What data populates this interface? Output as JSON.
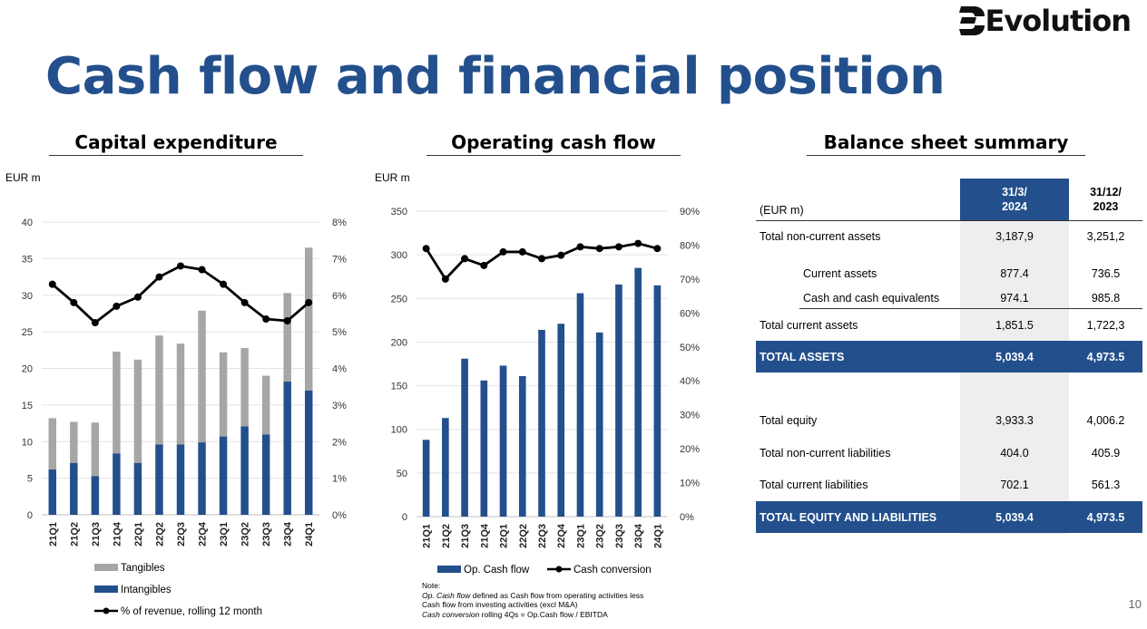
{
  "header": {
    "title": "Cash flow and financial position",
    "logo_text": "Evolution"
  },
  "page_number": "10",
  "colors": {
    "primary": "#23508c",
    "grey": "#a6a6a6",
    "line": "#000000"
  },
  "capex": {
    "section_title": "Capital expenditure",
    "unit": "EUR m",
    "legend": {
      "tangibles": "Tangibles",
      "intangibles": "Intangibles",
      "line": "% of revenue, rolling 12 month"
    }
  },
  "ocf": {
    "section_title": "Operating cash flow",
    "unit": "EUR m",
    "legend": {
      "bars": "Op. Cash flow",
      "line": "Cash conversion"
    },
    "note": {
      "heading": "Note:",
      "line1_italic": "Op. Cash flow",
      "line1_rest": " defined as Cash flow from operating activities less",
      "line2": "Cash flow from investing activities (excl M&A)",
      "line3_italic": "Cash conversion",
      "line3_rest": " rolling 4Qs = Op.Cash flow / EBITDA"
    }
  },
  "chart_data": [
    {
      "type": "bar",
      "stacked": true,
      "categories": [
        "21Q1",
        "21Q2",
        "21Q3",
        "21Q4",
        "22Q1",
        "22Q2",
        "22Q3",
        "22Q4",
        "23Q1",
        "23Q2",
        "23Q3",
        "23Q4",
        "24Q1"
      ],
      "series": [
        {
          "name": "Intangibles",
          "values": [
            6.2,
            7.1,
            5.3,
            8.4,
            7.1,
            9.6,
            9.6,
            9.9,
            10.7,
            12.1,
            11.0,
            18.2,
            17.0
          ]
        },
        {
          "name": "Tangibles",
          "values": [
            7.0,
            5.6,
            7.3,
            13.9,
            14.1,
            14.9,
            13.8,
            18.0,
            11.5,
            10.7,
            8.0,
            12.1,
            19.5
          ]
        }
      ],
      "line_series": {
        "name": "% of revenue, rolling 12 month",
        "values": [
          6.3,
          5.8,
          5.25,
          5.7,
          5.95,
          6.5,
          6.8,
          6.7,
          6.3,
          5.8,
          5.35,
          5.3,
          5.8
        ]
      },
      "ylim": [
        0,
        40
      ],
      "yticks": [
        "0",
        "5",
        "10",
        "15",
        "20",
        "25",
        "30",
        "35",
        "40"
      ],
      "y2lim": [
        0,
        8
      ],
      "y2ticks": [
        "0%",
        "1%",
        "2%",
        "3%",
        "4%",
        "5%",
        "6%",
        "7%",
        "8%"
      ],
      "legend_position": "bottom-left"
    },
    {
      "type": "bar",
      "categories": [
        "21Q1",
        "21Q2",
        "21Q3",
        "21Q4",
        "22Q1",
        "22Q2",
        "22Q3",
        "22Q4",
        "23Q1",
        "23Q2",
        "23Q3",
        "23Q4",
        "24Q1"
      ],
      "series": [
        {
          "name": "Op. Cash flow",
          "values": [
            88,
            113,
            181,
            156,
            173,
            161,
            214,
            221,
            256,
            211,
            266,
            285,
            265
          ]
        }
      ],
      "line_series": {
        "name": "Cash conversion",
        "values": [
          79,
          70,
          76,
          74,
          78,
          78,
          76,
          77,
          79.5,
          79,
          79.5,
          80.5,
          79
        ]
      },
      "ylim": [
        0,
        350
      ],
      "yticks": [
        "0",
        "50",
        "100",
        "150",
        "200",
        "250",
        "300",
        "350"
      ],
      "y2lim": [
        0,
        90
      ],
      "y2ticks": [
        "0%",
        "10%",
        "20%",
        "30%",
        "40%",
        "50%",
        "60%",
        "70%",
        "80%",
        "90%"
      ],
      "legend_position": "bottom"
    }
  ],
  "balance": {
    "section_title": "Balance sheet summary",
    "unit_label": "(EUR m)",
    "col1": {
      "line1": "31/3/",
      "line2": "2024"
    },
    "col2": {
      "line1": "31/12/",
      "line2": "2023"
    },
    "rows": [
      {
        "label": "Total non-current assets",
        "v1": "3,187,9",
        "v2": "3,251,2"
      },
      {
        "label": "Current assets",
        "v1": "877.4",
        "v2": "736.5"
      },
      {
        "label": "Cash and cash equivalents",
        "v1": "974.1",
        "v2": "985.8"
      },
      {
        "label": "Total current assets",
        "v1": "1,851.5",
        "v2": "1,722,3"
      },
      {
        "label": "TOTAL ASSETS",
        "v1": "5,039.4",
        "v2": "4,973.5"
      },
      {
        "label": "Total equity",
        "v1": "3,933.3",
        "v2": "4,006.2"
      },
      {
        "label": "Total non-current liabilities",
        "v1": "404.0",
        "v2": "405.9"
      },
      {
        "label": "Total current liabilities",
        "v1": "702.1",
        "v2": "561.3"
      },
      {
        "label": "TOTAL EQUITY AND LIABILITIES",
        "v1": "5,039.4",
        "v2": "4,973.5"
      }
    ]
  }
}
